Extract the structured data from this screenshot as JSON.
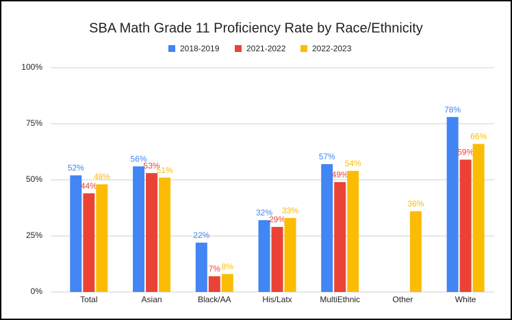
{
  "chart_data": {
    "type": "bar",
    "title": "SBA Math Grade 11 Proficiency Rate by Race/Ethnicity",
    "categories": [
      "Total",
      "Asian",
      "Black/AA",
      "His/Latx",
      "MultiEthnic",
      "Other",
      "White"
    ],
    "series": [
      {
        "name": "2018-2019",
        "color": "#4285f4",
        "values": [
          52,
          56,
          22,
          32,
          57,
          null,
          78
        ],
        "value_labels": [
          "52%",
          "56%",
          "22%",
          "32%",
          "57%",
          null,
          "78%"
        ]
      },
      {
        "name": "2021-2022",
        "color": "#ea4335",
        "values": [
          44,
          53,
          7,
          29,
          49,
          null,
          59
        ],
        "value_labels": [
          "44%",
          "53%",
          "7%",
          "29%",
          "49%",
          null,
          "59%"
        ]
      },
      {
        "name": "2022-2023",
        "color": "#fbbc04",
        "values": [
          48,
          51,
          8,
          33,
          54,
          36,
          66
        ],
        "value_labels": [
          "48%",
          "51%",
          "8%",
          "33%",
          "54%",
          "36%",
          "66%"
        ]
      }
    ],
    "ylim": [
      0,
      100
    ],
    "yticks": [
      {
        "value": 0,
        "label": "0%"
      },
      {
        "value": 25,
        "label": "25%"
      },
      {
        "value": 50,
        "label": "50%"
      },
      {
        "value": 75,
        "label": "75%"
      },
      {
        "value": 100,
        "label": "100%"
      }
    ],
    "grid": true,
    "legend": "top"
  }
}
